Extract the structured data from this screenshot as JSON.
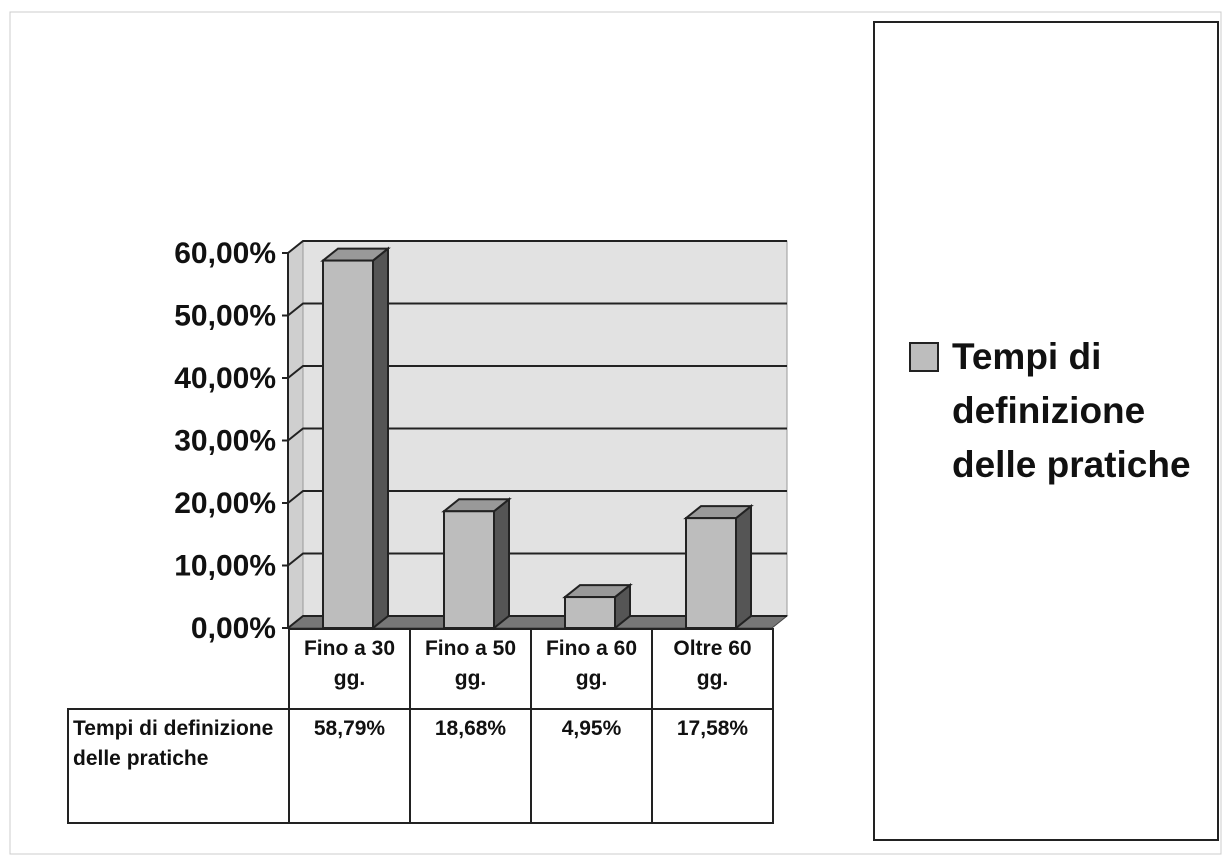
{
  "chart_data": {
    "type": "bar",
    "categories": [
      "Fino a 30 gg.",
      "Fino a 50 gg.",
      "Fino a 60 gg.",
      "Oltre 60 gg."
    ],
    "series": [
      {
        "name": "Tempi di definizione delle pratiche",
        "color": "#bdbdbd",
        "values": [
          58.79,
          18.68,
          4.95,
          17.58
        ],
        "value_labels": [
          "58,79%",
          "18,68%",
          "4,95%",
          "17,58%"
        ]
      }
    ],
    "ylim": [
      0,
      60
    ],
    "yticks": [
      {
        "value": 0,
        "label": "0,00%"
      },
      {
        "value": 10,
        "label": "10,00%"
      },
      {
        "value": 20,
        "label": "20,00%"
      },
      {
        "value": 30,
        "label": "30,00%"
      },
      {
        "value": 40,
        "label": "40,00%"
      },
      {
        "value": 50,
        "label": "50,00%"
      },
      {
        "value": 60,
        "label": "60,00%"
      }
    ],
    "grid": true,
    "legend": "right",
    "data_table": true
  }
}
